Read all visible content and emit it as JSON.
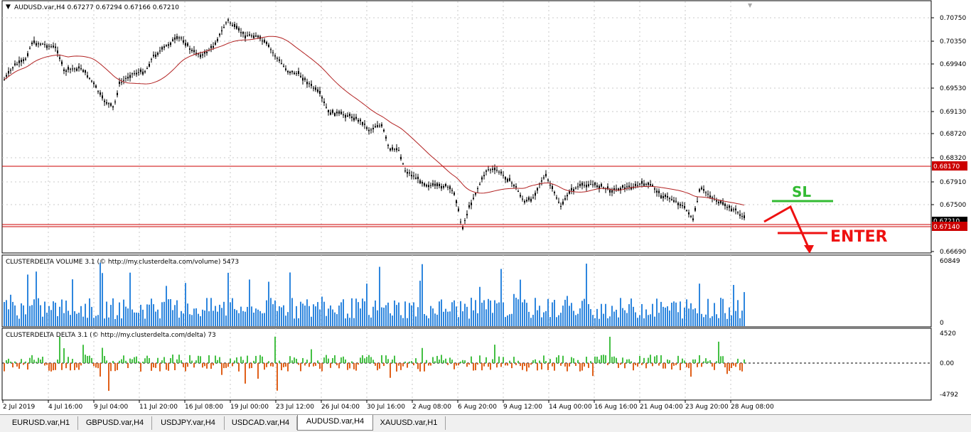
{
  "main_chart": {
    "header": "AUDUSD.var,H4  0.67277 0.67294 0.67166 0.67210",
    "price_scale": [
      "0.70750",
      "0.70350",
      "0.69940",
      "0.69530",
      "0.69130",
      "0.68720",
      "0.68320",
      "0.67910",
      "0.67500",
      "0.66690"
    ],
    "resistance_label": "0.68170",
    "current_label": "0.67140",
    "current_label_top": "0.67210",
    "annotations": {
      "sl": "SL",
      "enter": "ENTER"
    },
    "colors": {
      "bull": "#000000",
      "ma": "#b22222",
      "hline": "#cc0000",
      "sl": "#33bb33",
      "enter": "#ee1111"
    }
  },
  "volume_panel": {
    "header": "CLUSTERDELTA VOLUME 3.1 (© http://my.clusterdelta.com/volume) 5473",
    "scale": [
      "60849",
      "0"
    ],
    "color": "#2e86de"
  },
  "delta_panel": {
    "header": "CLUSTERDELTA DELTA 3.1 (© http://my.clusterdelta.com/delta) 73",
    "scale": [
      "4520",
      "0.00",
      "-4792"
    ],
    "colors": {
      "positive": "#44c044",
      "negative": "#e0601a"
    }
  },
  "time_axis": [
    "2 Jul 2019",
    "4 Jul 16:00",
    "9 Jul 04:00",
    "11 Jul 20:00",
    "16 Jul 08:00",
    "19 Jul 00:00",
    "23 Jul 12:00",
    "26 Jul 04:00",
    "30 Jul 16:00",
    "2 Aug 08:00",
    "6 Aug 20:00",
    "9 Aug 12:00",
    "14 Aug 00:00",
    "16 Aug 16:00",
    "21 Aug 04:00",
    "23 Aug 20:00",
    "28 Aug 08:00"
  ],
  "tabs": [
    {
      "label": "EURUSD.var,H1"
    },
    {
      "label": "GBPUSD.var,H4"
    },
    {
      "label": "USDJPY.var,H4"
    },
    {
      "label": "USDCAD.var,H4"
    },
    {
      "label": "AUDUSD.var,H4",
      "active": true
    },
    {
      "label": "XAUUSD.var,H1"
    }
  ]
}
